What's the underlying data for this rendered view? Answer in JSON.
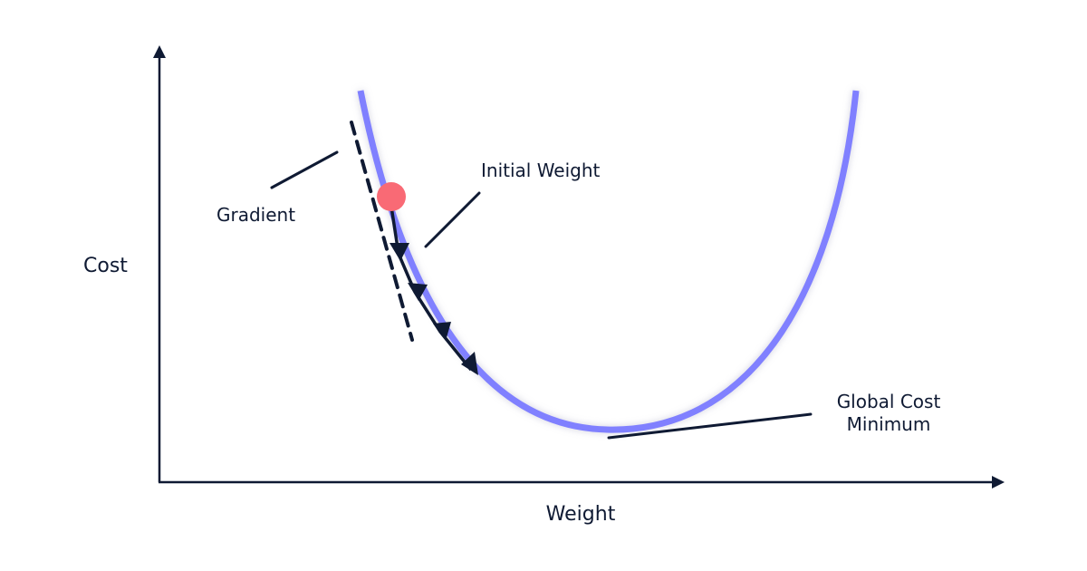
{
  "labels": {
    "y_axis": "Cost",
    "x_axis": "Weight",
    "gradient": "Gradient",
    "initial_weight": "Initial Weight",
    "global_min_line1": "Global Cost",
    "global_min_line2": "Minimum"
  },
  "colors": {
    "curve": "#8080ff",
    "ink": "#0f1a33",
    "initial_point": "#f96a75"
  }
}
